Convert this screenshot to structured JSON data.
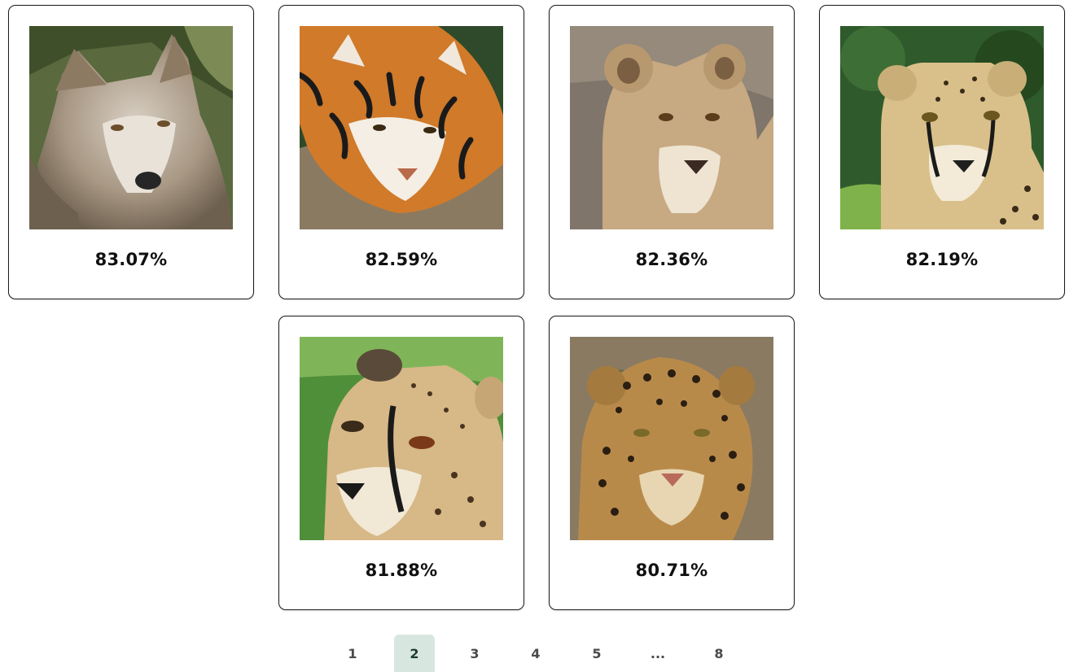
{
  "results": [
    {
      "score": "83.07%",
      "animal": "wolf-photo"
    },
    {
      "score": "82.59%",
      "animal": "tiger-photo"
    },
    {
      "score": "82.36%",
      "animal": "lioness-photo"
    },
    {
      "score": "82.19%",
      "animal": "cheetah-photo"
    },
    {
      "score": "81.88%",
      "animal": "cheetah-photo"
    },
    {
      "score": "80.71%",
      "animal": "jaguar-photo"
    }
  ],
  "pagination": {
    "pages": [
      "1",
      "2",
      "3",
      "4",
      "5",
      "...",
      "8"
    ],
    "current": "2"
  }
}
